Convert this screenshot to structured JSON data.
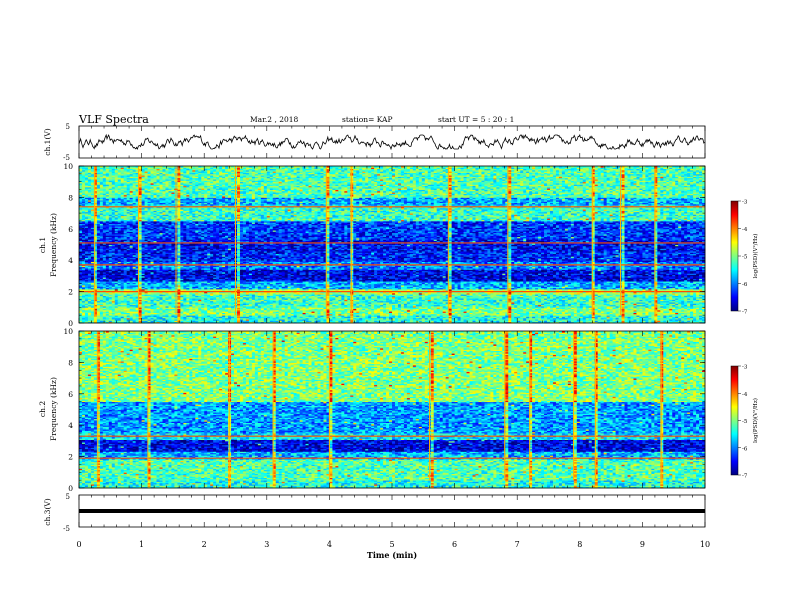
{
  "header": {
    "title": "VLF Spectra",
    "date": "Mar.2 , 2018",
    "station": "station= KAP",
    "start_ut": "start UT =  5 : 20 : 1"
  },
  "chart_data": {
    "type": "heatmap",
    "x_axis": {
      "label": "Time (min)",
      "range": [
        0,
        10
      ],
      "ticks": [
        "0",
        "1",
        "2",
        "3",
        "4",
        "5",
        "6",
        "7",
        "8",
        "9",
        "10"
      ]
    },
    "panels": [
      {
        "id": "ch1-waveform",
        "type": "line",
        "ylabel": "ch.1(V)",
        "ylim": [
          -5,
          5
        ],
        "yticks": [
          "5",
          "-5"
        ],
        "description_level": "noisy signal between about -1.5 and 1.5 V"
      },
      {
        "id": "ch1-spectrogram",
        "type": "heatmap",
        "ylabel_lines": [
          "ch.1",
          "Frequency (kHz)"
        ],
        "ylim": [
          0,
          10
        ],
        "yticks": [
          "0",
          "2",
          "4",
          "6",
          "8",
          "10"
        ],
        "bands": [
          {
            "from": 0.0,
            "to": 0.5,
            "level": -5.4
          },
          {
            "from": 0.5,
            "to": 1.0,
            "level": -5.0
          },
          {
            "from": 1.0,
            "to": 1.8,
            "level": -5.3
          },
          {
            "from": 1.8,
            "to": 2.2,
            "level": -4.8
          },
          {
            "from": 2.2,
            "to": 2.7,
            "level": -5.8
          },
          {
            "from": 2.7,
            "to": 3.4,
            "level": -6.6
          },
          {
            "from": 3.4,
            "to": 3.9,
            "level": -6.0
          },
          {
            "from": 3.9,
            "to": 4.6,
            "level": -6.4
          },
          {
            "from": 4.6,
            "to": 5.3,
            "level": -6.5
          },
          {
            "from": 5.3,
            "to": 6.5,
            "level": -6.3
          },
          {
            "from": 6.5,
            "to": 7.5,
            "level": -5.3
          },
          {
            "from": 7.5,
            "to": 8.0,
            "level": -5.8
          },
          {
            "from": 8.0,
            "to": 10.0,
            "level": -5.2
          }
        ],
        "lines_khz": [
          2.0,
          3.7,
          5.1,
          7.4
        ],
        "bursts_min": [
          0.25,
          0.95,
          1.55,
          2.5,
          3.95,
          4.35,
          5.9,
          6.85,
          8.2,
          8.65,
          9.2
        ],
        "colorbar": {
          "label": "log(PSD)(V²/Hz)",
          "range": [
            -7,
            -3
          ],
          "ticks": [
            "-3",
            "-4",
            "-5",
            "-6",
            "-7"
          ]
        }
      },
      {
        "id": "ch2-spectrogram",
        "type": "heatmap",
        "ylabel_lines": [
          "ch.2",
          "Frequency (kHz)"
        ],
        "ylim": [
          0,
          10
        ],
        "yticks": [
          "0",
          "2",
          "4",
          "6",
          "8",
          "10"
        ],
        "bands": [
          {
            "from": 0.0,
            "to": 0.5,
            "level": -5.4
          },
          {
            "from": 0.5,
            "to": 1.8,
            "level": -5.2
          },
          {
            "from": 1.8,
            "to": 2.3,
            "level": -5.8
          },
          {
            "from": 2.3,
            "to": 3.1,
            "level": -6.6
          },
          {
            "from": 3.1,
            "to": 3.5,
            "level": -5.6
          },
          {
            "from": 3.5,
            "to": 5.5,
            "level": -5.9
          },
          {
            "from": 5.5,
            "to": 10.0,
            "level": -5.0
          }
        ],
        "lines_khz": [
          1.9,
          3.3
        ],
        "bursts_min": [
          0.3,
          1.1,
          2.4,
          3.1,
          4.0,
          5.6,
          6.8,
          7.2,
          7.9,
          8.25,
          9.3
        ],
        "colorbar": {
          "label": "log(PSD)(V²/Hz)",
          "range": [
            -7,
            -3
          ],
          "ticks": [
            "-3",
            "-4",
            "-5",
            "-6",
            "-7"
          ]
        }
      },
      {
        "id": "ch3-waveform",
        "type": "line",
        "ylabel": "ch.3(V)",
        "ylim": [
          -5,
          5
        ],
        "yticks": [
          "5",
          "-5"
        ],
        "constant_value": 0
      }
    ],
    "colors": {
      "scale": [
        "#00007f",
        "#0000ff",
        "#0080ff",
        "#00ffff",
        "#80ff80",
        "#ffff00",
        "#ff8000",
        "#ff0000",
        "#7f0000"
      ]
    }
  }
}
